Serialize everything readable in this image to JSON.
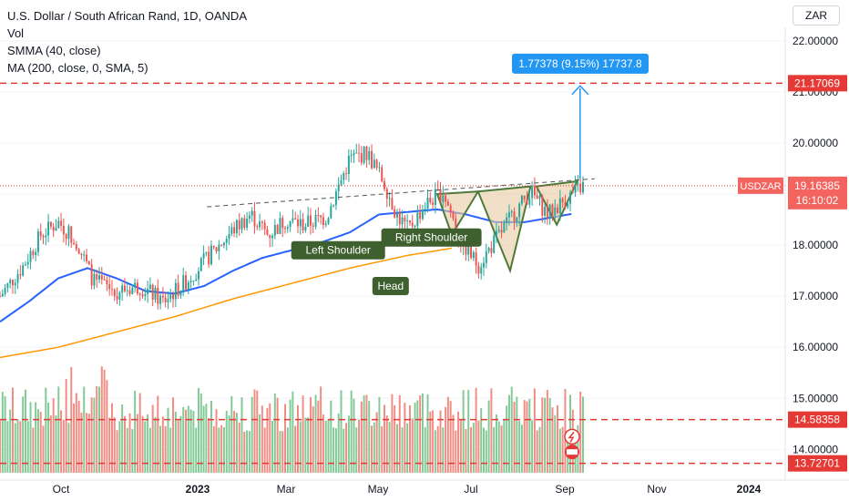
{
  "legend": {
    "title": "U.S. Dollar / South African Rand, 1D, OANDA",
    "vol": "Vol",
    "smma": "SMMA (40, close)",
    "ma": "MA (200, close, 0, SMA, 5)"
  },
  "currency": "ZAR",
  "colors": {
    "up": "#26a69a",
    "down": "#ef5350",
    "smma": "#2962ff",
    "ma": "#ff9800",
    "vol_up": "#81c995",
    "vol_down": "#f28b82",
    "label_bg": "#3e5f2e",
    "measure": "#2196f3",
    "level": "#e53935",
    "pattern_fill": "#e8c9a4",
    "pattern_line": "#4e7a3a"
  },
  "chart_data": {
    "type": "candlestick",
    "symbol": "USDZAR",
    "ylim": [
      13.4,
      22.8
    ],
    "y_ticks": [
      14.0,
      15.0,
      16.0,
      17.0,
      18.0,
      19.0,
      20.0,
      21.0,
      22.0
    ],
    "y_tick_labels": [
      "14.00000",
      "15.00000",
      "16.00000",
      "17.00000",
      "18.00000",
      "19.00000",
      "20.00000",
      "21.00000",
      "22.00000"
    ],
    "x_ticks": [
      "Oct",
      "2023",
      "Mar",
      "May",
      "Jul",
      "Sep",
      "Nov",
      "2024"
    ],
    "price_path": [
      [
        0,
        17.0
      ],
      [
        0.04,
        17.6
      ],
      [
        0.07,
        18.2
      ],
      [
        0.1,
        18.45
      ],
      [
        0.13,
        18.1
      ],
      [
        0.16,
        17.3
      ],
      [
        0.2,
        17.1
      ],
      [
        0.24,
        17.2
      ],
      [
        0.28,
        16.9
      ],
      [
        0.32,
        17.3
      ],
      [
        0.36,
        17.8
      ],
      [
        0.4,
        18.3
      ],
      [
        0.43,
        18.6
      ],
      [
        0.46,
        18.2
      ],
      [
        0.49,
        18.5
      ],
      [
        0.52,
        18.4
      ],
      [
        0.56,
        18.55
      ],
      [
        0.6,
        19.7
      ],
      [
        0.63,
        19.8
      ],
      [
        0.66,
        19.2
      ],
      [
        0.68,
        18.6
      ],
      [
        0.7,
        18.3
      ],
      [
        0.73,
        18.8
      ],
      [
        0.76,
        19.05
      ],
      [
        0.79,
        18.1
      ],
      [
        0.82,
        17.6
      ],
      [
        0.85,
        18.1
      ],
      [
        0.88,
        18.6
      ],
      [
        0.91,
        19.05
      ],
      [
        0.94,
        18.6
      ],
      [
        0.97,
        18.9
      ],
      [
        1.0,
        19.16
      ]
    ],
    "smma_path": [
      [
        0,
        16.5
      ],
      [
        0.05,
        16.9
      ],
      [
        0.1,
        17.35
      ],
      [
        0.15,
        17.55
      ],
      [
        0.2,
        17.35
      ],
      [
        0.25,
        17.1
      ],
      [
        0.3,
        17.05
      ],
      [
        0.35,
        17.2
      ],
      [
        0.4,
        17.5
      ],
      [
        0.45,
        17.75
      ],
      [
        0.5,
        17.9
      ],
      [
        0.55,
        18.05
      ],
      [
        0.6,
        18.25
      ],
      [
        0.65,
        18.6
      ],
      [
        0.7,
        18.65
      ],
      [
        0.75,
        18.7
      ],
      [
        0.8,
        18.6
      ],
      [
        0.85,
        18.45
      ],
      [
        0.9,
        18.45
      ],
      [
        1.0,
        18.65
      ]
    ],
    "ma_path": [
      [
        0,
        15.8
      ],
      [
        0.1,
        16.0
      ],
      [
        0.2,
        16.3
      ],
      [
        0.3,
        16.6
      ],
      [
        0.4,
        16.95
      ],
      [
        0.5,
        17.25
      ],
      [
        0.6,
        17.55
      ],
      [
        0.7,
        17.8
      ],
      [
        0.78,
        17.95
      ]
    ],
    "current_price": "19.16385",
    "current_label": "USDZAR",
    "countdown": "16:10:02",
    "levels": [
      {
        "value": 21.17069,
        "label": "21.17069"
      },
      {
        "value": 14.58358,
        "label": "14.58358"
      },
      {
        "value": 13.72701,
        "label": "13.72701"
      }
    ],
    "neckline": {
      "from": [
        0.355,
        18.75
      ],
      "to": [
        1.02,
        19.3
      ]
    },
    "measure_label": "1.77378 (9.15%) 17737.8",
    "pattern_labels": [
      {
        "text": "Left Shoulder",
        "x": 0.58,
        "y": 17.9
      },
      {
        "text": "Head",
        "x": 0.67,
        "y": 17.2
      },
      {
        "text": "Right Shoulder",
        "x": 0.74,
        "y": 18.15
      }
    ]
  }
}
